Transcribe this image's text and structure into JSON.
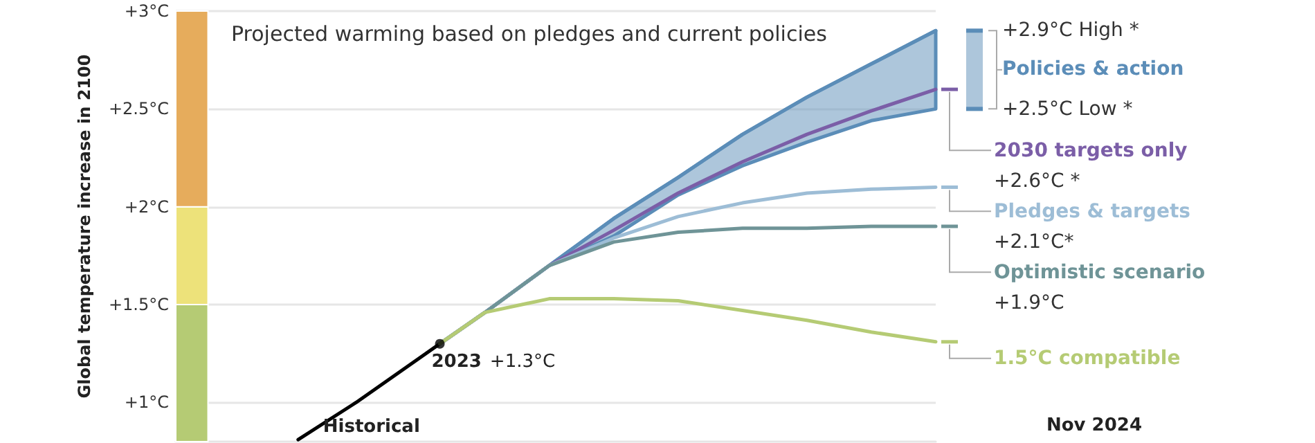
{
  "chart_data": {
    "type": "line",
    "title": "Projected warming based on pledges and current policies",
    "ylabel": "Global temperature increase in 2100",
    "categories": [
      null,
      null,
      null,
      null,
      null,
      null,
      null,
      null,
      null,
      null,
      null,
      null,
      null,
      null,
      null,
      null,
      null,
      null,
      null,
      null,
      null,
      null,
      null,
      null,
      null,
      null,
      null,
      null,
      null,
      null,
      null,
      null,
      null,
      null,
      null,
      null,
      null,
      null,
      null,
      null,
      null,
      null,
      null,
      null,
      null,
      null,
      null,
      null,
      null,
      null,
      null,
      null,
      null,
      null,
      null,
      null,
      null,
      null,
      null,
      null,
      null,
      null,
      null,
      null,
      null,
      null,
      null,
      null,
      null,
      null,
      null,
      null,
      null,
      null,
      null,
      null,
      null,
      null,
      null,
      null,
      null,
      null,
      null,
      null,
      null,
      null,
      null,
      null,
      null,
      null,
      null,
      null,
      null,
      null,
      null,
      null,
      null,
      null,
      null,
      null,
      null,
      null,
      null,
      null,
      null,
      null,
      null,
      null,
      null,
      null,
      null,
      null,
      null,
      null,
      null,
      null,
      null,
      null,
      null
    ],
    "ylim": [
      0.8,
      3
    ],
    "yticks": [
      {
        "value": 1,
        "label": "+1°C"
      },
      {
        "value": 1.5,
        "label": "+1.5°C"
      },
      {
        "value": 2,
        "label": "+2°C"
      },
      {
        "value": 2.5,
        "label": "+2.5°C"
      },
      {
        "value": 3,
        "label": "+3°C"
      }
    ],
    "tick_labels": "y",
    "grid": "y",
    "marker": "none",
    "bands": [
      {
        "axis": "y",
        "from": 0.8,
        "to": 1.5,
        "color": "#b5cb74"
      },
      {
        "axis": "y",
        "from": 1.5,
        "to": 2,
        "color": "#ede27a"
      },
      {
        "axis": "y",
        "from": 2,
        "to": 3,
        "color": "#e6ac5c"
      }
    ],
    "series": [
      {
        "color": "#000000",
        "values": [
          null,
          null,
          null,
          null,
          null,
          null,
          null,
          null,
          null,
          null,
          null,
          null,
          null,
          null,
          null,
          null,
          null,
          null,
          null,
          0.81,
          null,
          null,
          null,
          null,
          null,
          null,
          null,
          null,
          1.0,
          null,
          null,
          null,
          null,
          null,
          null,
          null,
          null,
          null,
          null,
          null,
          null,
          1.3,
          null,
          null,
          null,
          null,
          null,
          null,
          null,
          null,
          null,
          null,
          null,
          null,
          null,
          null,
          null,
          null,
          null,
          null,
          null,
          null,
          null,
          null,
          null,
          null,
          null,
          null,
          null,
          null,
          null,
          null,
          null,
          null,
          null,
          null,
          null,
          null,
          null,
          null,
          null,
          null,
          null,
          null,
          null,
          null,
          null,
          null,
          null,
          null,
          null,
          null,
          null,
          null,
          null,
          null,
          null,
          null,
          null,
          null,
          null,
          null,
          null,
          null,
          null,
          null,
          null,
          null,
          null,
          null,
          null,
          null,
          null,
          null,
          null,
          null,
          null,
          null,
          null
        ]
      },
      {
        "name": "Policies & action",
        "color": "#5b8db8",
        "values": [
          null,
          null,
          null,
          null,
          null,
          null,
          null,
          null,
          null,
          null,
          null,
          null,
          null,
          null,
          null,
          null,
          null,
          null,
          null,
          null,
          null,
          null,
          null,
          null,
          null,
          null,
          null,
          null,
          null,
          null,
          null,
          null,
          null,
          null,
          null,
          null,
          null,
          null,
          null,
          null,
          null,
          1.3,
          null,
          null,
          null,
          null,
          null,
          null,
          1.46,
          null,
          null,
          null,
          null,
          null,
          null,
          null,
          null,
          null,
          1.7,
          null,
          null,
          null,
          null,
          null,
          null,
          null,
          null,
          null,
          1.94,
          null,
          null,
          null,
          null,
          null,
          null,
          null,
          null,
          null,
          2.15,
          null,
          null,
          null,
          null,
          null,
          null,
          null,
          null,
          null,
          2.37,
          null,
          null,
          null,
          null,
          null,
          null,
          null,
          null,
          null,
          2.56,
          null,
          null,
          null,
          null,
          null,
          null,
          null,
          null,
          null,
          2.73,
          null,
          null,
          null,
          null,
          null,
          null,
          null,
          null,
          null,
          2.9
        ],
        "lower": [
          null,
          null,
          null,
          null,
          null,
          null,
          null,
          null,
          null,
          null,
          null,
          null,
          null,
          null,
          null,
          null,
          null,
          null,
          null,
          null,
          null,
          null,
          null,
          null,
          null,
          null,
          null,
          null,
          null,
          null,
          null,
          null,
          null,
          null,
          null,
          null,
          null,
          null,
          null,
          null,
          null,
          1.3,
          null,
          null,
          null,
          null,
          null,
          null,
          1.46,
          null,
          null,
          null,
          null,
          null,
          null,
          null,
          null,
          null,
          1.7,
          null,
          null,
          null,
          null,
          null,
          null,
          null,
          null,
          null,
          1.85,
          null,
          null,
          null,
          null,
          null,
          null,
          null,
          null,
          null,
          2.06,
          null,
          null,
          null,
          null,
          null,
          null,
          null,
          null,
          null,
          2.21,
          null,
          null,
          null,
          null,
          null,
          null,
          null,
          null,
          null,
          2.33,
          null,
          null,
          null,
          null,
          null,
          null,
          null,
          null,
          null,
          2.44,
          null,
          null,
          null,
          null,
          null,
          null,
          null,
          null,
          null,
          2.5
        ],
        "upper": [
          null,
          null,
          null,
          null,
          null,
          null,
          null,
          null,
          null,
          null,
          null,
          null,
          null,
          null,
          null,
          null,
          null,
          null,
          null,
          null,
          null,
          null,
          null,
          null,
          null,
          null,
          null,
          null,
          null,
          null,
          null,
          null,
          null,
          null,
          null,
          null,
          null,
          null,
          null,
          null,
          null,
          1.3,
          null,
          null,
          null,
          null,
          null,
          null,
          1.46,
          null,
          null,
          null,
          null,
          null,
          null,
          null,
          null,
          null,
          1.7,
          null,
          null,
          null,
          null,
          null,
          null,
          null,
          null,
          null,
          1.94,
          null,
          null,
          null,
          null,
          null,
          null,
          null,
          null,
          null,
          2.15,
          null,
          null,
          null,
          null,
          null,
          null,
          null,
          null,
          null,
          2.37,
          null,
          null,
          null,
          null,
          null,
          null,
          null,
          null,
          null,
          2.56,
          null,
          null,
          null,
          null,
          null,
          null,
          null,
          null,
          null,
          2.73,
          null,
          null,
          null,
          null,
          null,
          null,
          null,
          null,
          null,
          2.9
        ]
      },
      {
        "name": "2030 targets only",
        "color": "#7b5ea7",
        "values": [
          null,
          null,
          null,
          null,
          null,
          null,
          null,
          null,
          null,
          null,
          null,
          null,
          null,
          null,
          null,
          null,
          null,
          null,
          null,
          null,
          null,
          null,
          null,
          null,
          null,
          null,
          null,
          null,
          null,
          null,
          null,
          null,
          null,
          null,
          null,
          null,
          null,
          null,
          null,
          null,
          null,
          1.3,
          null,
          null,
          null,
          null,
          null,
          null,
          1.46,
          null,
          null,
          null,
          null,
          null,
          null,
          null,
          null,
          null,
          1.7,
          null,
          null,
          null,
          null,
          null,
          null,
          null,
          null,
          null,
          1.88,
          null,
          null,
          null,
          null,
          null,
          null,
          null,
          null,
          null,
          2.07,
          null,
          null,
          null,
          null,
          null,
          null,
          null,
          null,
          null,
          2.23,
          null,
          null,
          null,
          null,
          null,
          null,
          null,
          null,
          null,
          2.37,
          null,
          null,
          null,
          null,
          null,
          null,
          null,
          null,
          null,
          2.49,
          null,
          null,
          null,
          null,
          null,
          null,
          null,
          null,
          null,
          2.6
        ]
      },
      {
        "name": "Pledges & targets",
        "color": "#9dbdd6",
        "values": [
          null,
          null,
          null,
          null,
          null,
          null,
          null,
          null,
          null,
          null,
          null,
          null,
          null,
          null,
          null,
          null,
          null,
          null,
          null,
          null,
          null,
          null,
          null,
          null,
          null,
          null,
          null,
          null,
          null,
          null,
          null,
          null,
          null,
          null,
          null,
          null,
          null,
          null,
          null,
          null,
          null,
          1.3,
          null,
          null,
          null,
          null,
          null,
          null,
          1.46,
          null,
          null,
          null,
          null,
          null,
          null,
          null,
          null,
          null,
          1.7,
          null,
          null,
          null,
          null,
          null,
          null,
          null,
          null,
          null,
          1.84,
          null,
          null,
          null,
          null,
          null,
          null,
          null,
          null,
          null,
          1.95,
          null,
          null,
          null,
          null,
          null,
          null,
          null,
          null,
          null,
          2.02,
          null,
          null,
          null,
          null,
          null,
          null,
          null,
          null,
          null,
          2.07,
          null,
          null,
          null,
          null,
          null,
          null,
          null,
          null,
          null,
          2.09,
          null,
          null,
          null,
          null,
          null,
          null,
          null,
          null,
          null,
          2.1
        ]
      },
      {
        "name": "Optimistic scenario",
        "color": "#6f9497",
        "values": [
          null,
          null,
          null,
          null,
          null,
          null,
          null,
          null,
          null,
          null,
          null,
          null,
          null,
          null,
          null,
          null,
          null,
          null,
          null,
          null,
          null,
          null,
          null,
          null,
          null,
          null,
          null,
          null,
          null,
          null,
          null,
          null,
          null,
          null,
          null,
          null,
          null,
          null,
          null,
          null,
          null,
          1.3,
          null,
          null,
          null,
          null,
          null,
          null,
          1.46,
          null,
          null,
          null,
          null,
          null,
          null,
          null,
          null,
          null,
          1.7,
          null,
          null,
          null,
          null,
          null,
          null,
          null,
          null,
          null,
          1.82,
          null,
          null,
          null,
          null,
          null,
          null,
          null,
          null,
          null,
          1.87,
          null,
          null,
          null,
          null,
          null,
          null,
          null,
          null,
          null,
          1.89,
          null,
          null,
          null,
          null,
          null,
          null,
          null,
          null,
          null,
          1.89,
          null,
          null,
          null,
          null,
          null,
          null,
          null,
          null,
          null,
          1.9,
          null,
          null,
          null,
          null,
          null,
          null,
          null,
          null,
          null,
          1.9
        ]
      },
      {
        "name": "1.5°C compatible",
        "color": "#b5cb74",
        "values": [
          null,
          null,
          null,
          null,
          null,
          null,
          null,
          null,
          null,
          null,
          null,
          null,
          null,
          null,
          null,
          null,
          null,
          null,
          null,
          null,
          null,
          null,
          null,
          null,
          null,
          null,
          null,
          null,
          null,
          null,
          null,
          null,
          null,
          null,
          null,
          null,
          null,
          null,
          null,
          null,
          null,
          1.3,
          null,
          null,
          null,
          null,
          null,
          null,
          1.46,
          null,
          null,
          null,
          null,
          null,
          null,
          null,
          null,
          null,
          1.53,
          null,
          null,
          null,
          null,
          null,
          null,
          null,
          null,
          null,
          1.53,
          null,
          null,
          null,
          null,
          null,
          null,
          null,
          null,
          null,
          1.52,
          null,
          null,
          null,
          null,
          null,
          null,
          null,
          null,
          null,
          1.47,
          null,
          null,
          null,
          null,
          null,
          null,
          null,
          null,
          null,
          1.42,
          null,
          null,
          null,
          null,
          null,
          null,
          null,
          null,
          null,
          1.36,
          null,
          null,
          null,
          null,
          null,
          null,
          null,
          null,
          null,
          1.31
        ]
      },
      {
        "type": "scatter",
        "marker": "circle",
        "color": "#000000",
        "values": [
          null,
          null,
          null,
          null,
          null,
          null,
          null,
          null,
          null,
          null,
          null,
          null,
          null,
          null,
          null,
          null,
          null,
          null,
          null,
          null,
          null,
          null,
          null,
          null,
          null,
          null,
          null,
          null,
          null,
          null,
          null,
          null,
          null,
          null,
          null,
          null,
          null,
          null,
          null,
          null,
          null,
          1.3,
          null,
          null,
          null,
          null,
          null,
          null,
          null,
          null,
          null,
          null,
          null,
          null,
          null,
          null,
          null,
          null,
          null,
          null,
          null,
          null,
          null,
          null,
          null,
          null,
          null,
          null,
          null,
          null,
          null,
          null,
          null,
          null,
          null,
          null,
          null,
          null,
          null,
          null,
          null,
          null,
          null,
          null,
          null,
          null,
          null,
          null,
          null,
          null,
          null,
          null,
          null,
          null,
          null,
          null,
          null,
          null,
          null,
          null,
          null,
          null,
          null,
          null,
          null,
          null,
          null,
          null,
          null,
          null,
          null,
          null,
          null,
          null,
          null,
          null,
          null,
          null,
          null
        ]
      }
    ],
    "annotations": [
      "2023",
      "+1.3°C",
      "Historical",
      "+2.9°C High *",
      "+2.5°C Low *",
      "+2.6°C *",
      "+2.1°C*",
      "+1.9°C",
      "Nov 2024"
    ]
  }
}
